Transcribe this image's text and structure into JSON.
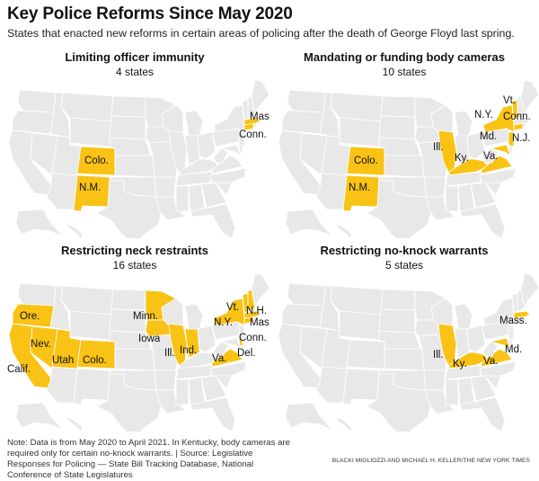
{
  "header": {
    "title": "Key Police Reforms Since May 2020",
    "subtitle": "States that enacted new reforms in certain areas of policing after the death of George Floyd last spring."
  },
  "colors": {
    "highlight": "#F9C316",
    "base": "#E8E8E8",
    "border": "#FFFFFF",
    "text": "#121212"
  },
  "panels": [
    {
      "title": "Limiting officer immunity",
      "count": "4 states",
      "states": [
        "CO",
        "NM",
        "MA",
        "CT"
      ],
      "labels": [
        {
          "state": "CO",
          "text": "Colo."
        },
        {
          "state": "NM",
          "text": "N.M."
        },
        {
          "state": "MA",
          "text": "Mass."
        },
        {
          "state": "CT",
          "text": "Conn."
        }
      ]
    },
    {
      "title": "Mandating or funding body cameras",
      "count": "10 states",
      "states": [
        "CO",
        "NM",
        "IL",
        "KY",
        "VA",
        "MD",
        "NY",
        "VT",
        "CT",
        "NJ"
      ],
      "labels": [
        {
          "state": "CO",
          "text": "Colo."
        },
        {
          "state": "NM",
          "text": "N.M."
        },
        {
          "state": "IL",
          "text": "Ill."
        },
        {
          "state": "KY",
          "text": "Ky."
        },
        {
          "state": "VA",
          "text": "Va."
        },
        {
          "state": "MD",
          "text": "Md."
        },
        {
          "state": "NY",
          "text": "N.Y."
        },
        {
          "state": "VT",
          "text": "Vt."
        },
        {
          "state": "CT",
          "text": "Conn."
        },
        {
          "state": "NJ",
          "text": "N.J."
        }
      ]
    },
    {
      "title": "Restricting neck restraints",
      "count": "16 states",
      "states": [
        "OR",
        "CA",
        "NV",
        "UT",
        "CO",
        "MN",
        "IA",
        "IL",
        "IN",
        "VA",
        "DE",
        "NY",
        "VT",
        "NH",
        "MA",
        "CT"
      ],
      "labels": [
        {
          "state": "OR",
          "text": "Ore."
        },
        {
          "state": "CA",
          "text": "Calif."
        },
        {
          "state": "NV",
          "text": "Nev."
        },
        {
          "state": "UT",
          "text": "Utah"
        },
        {
          "state": "CO",
          "text": "Colo."
        },
        {
          "state": "MN",
          "text": "Minn."
        },
        {
          "state": "IA",
          "text": "Iowa"
        },
        {
          "state": "IL",
          "text": "Ill."
        },
        {
          "state": "IN",
          "text": "Ind."
        },
        {
          "state": "VA",
          "text": "Va."
        },
        {
          "state": "DE",
          "text": "Del."
        },
        {
          "state": "NY",
          "text": "N.Y."
        },
        {
          "state": "VT",
          "text": "Vt."
        },
        {
          "state": "NH",
          "text": "N.H."
        },
        {
          "state": "MA",
          "text": "Mass."
        },
        {
          "state": "CT",
          "text": "Conn."
        }
      ]
    },
    {
      "title": "Restricting no-knock warrants",
      "count": "5 states",
      "states": [
        "IL",
        "KY",
        "VA",
        "MD",
        "MA"
      ],
      "labels": [
        {
          "state": "IL",
          "text": "Ill."
        },
        {
          "state": "KY",
          "text": "Ky."
        },
        {
          "state": "VA",
          "text": "Va."
        },
        {
          "state": "MD",
          "text": "Md."
        },
        {
          "state": "MA",
          "text": "Mass."
        }
      ]
    }
  ],
  "footer": {
    "note": "Note: Data is from May 2020 to April 2021. In Kentucky, body cameras are required only for certain no-knock warrants. | Source: Legislative Responses for Policing — State Bill Tracking Database, National Conference of State Legislatures",
    "credit": "BLACKI MIGLIOZZI AND MICHAEL H. KELLER/THE NEW YORK TIMES"
  }
}
